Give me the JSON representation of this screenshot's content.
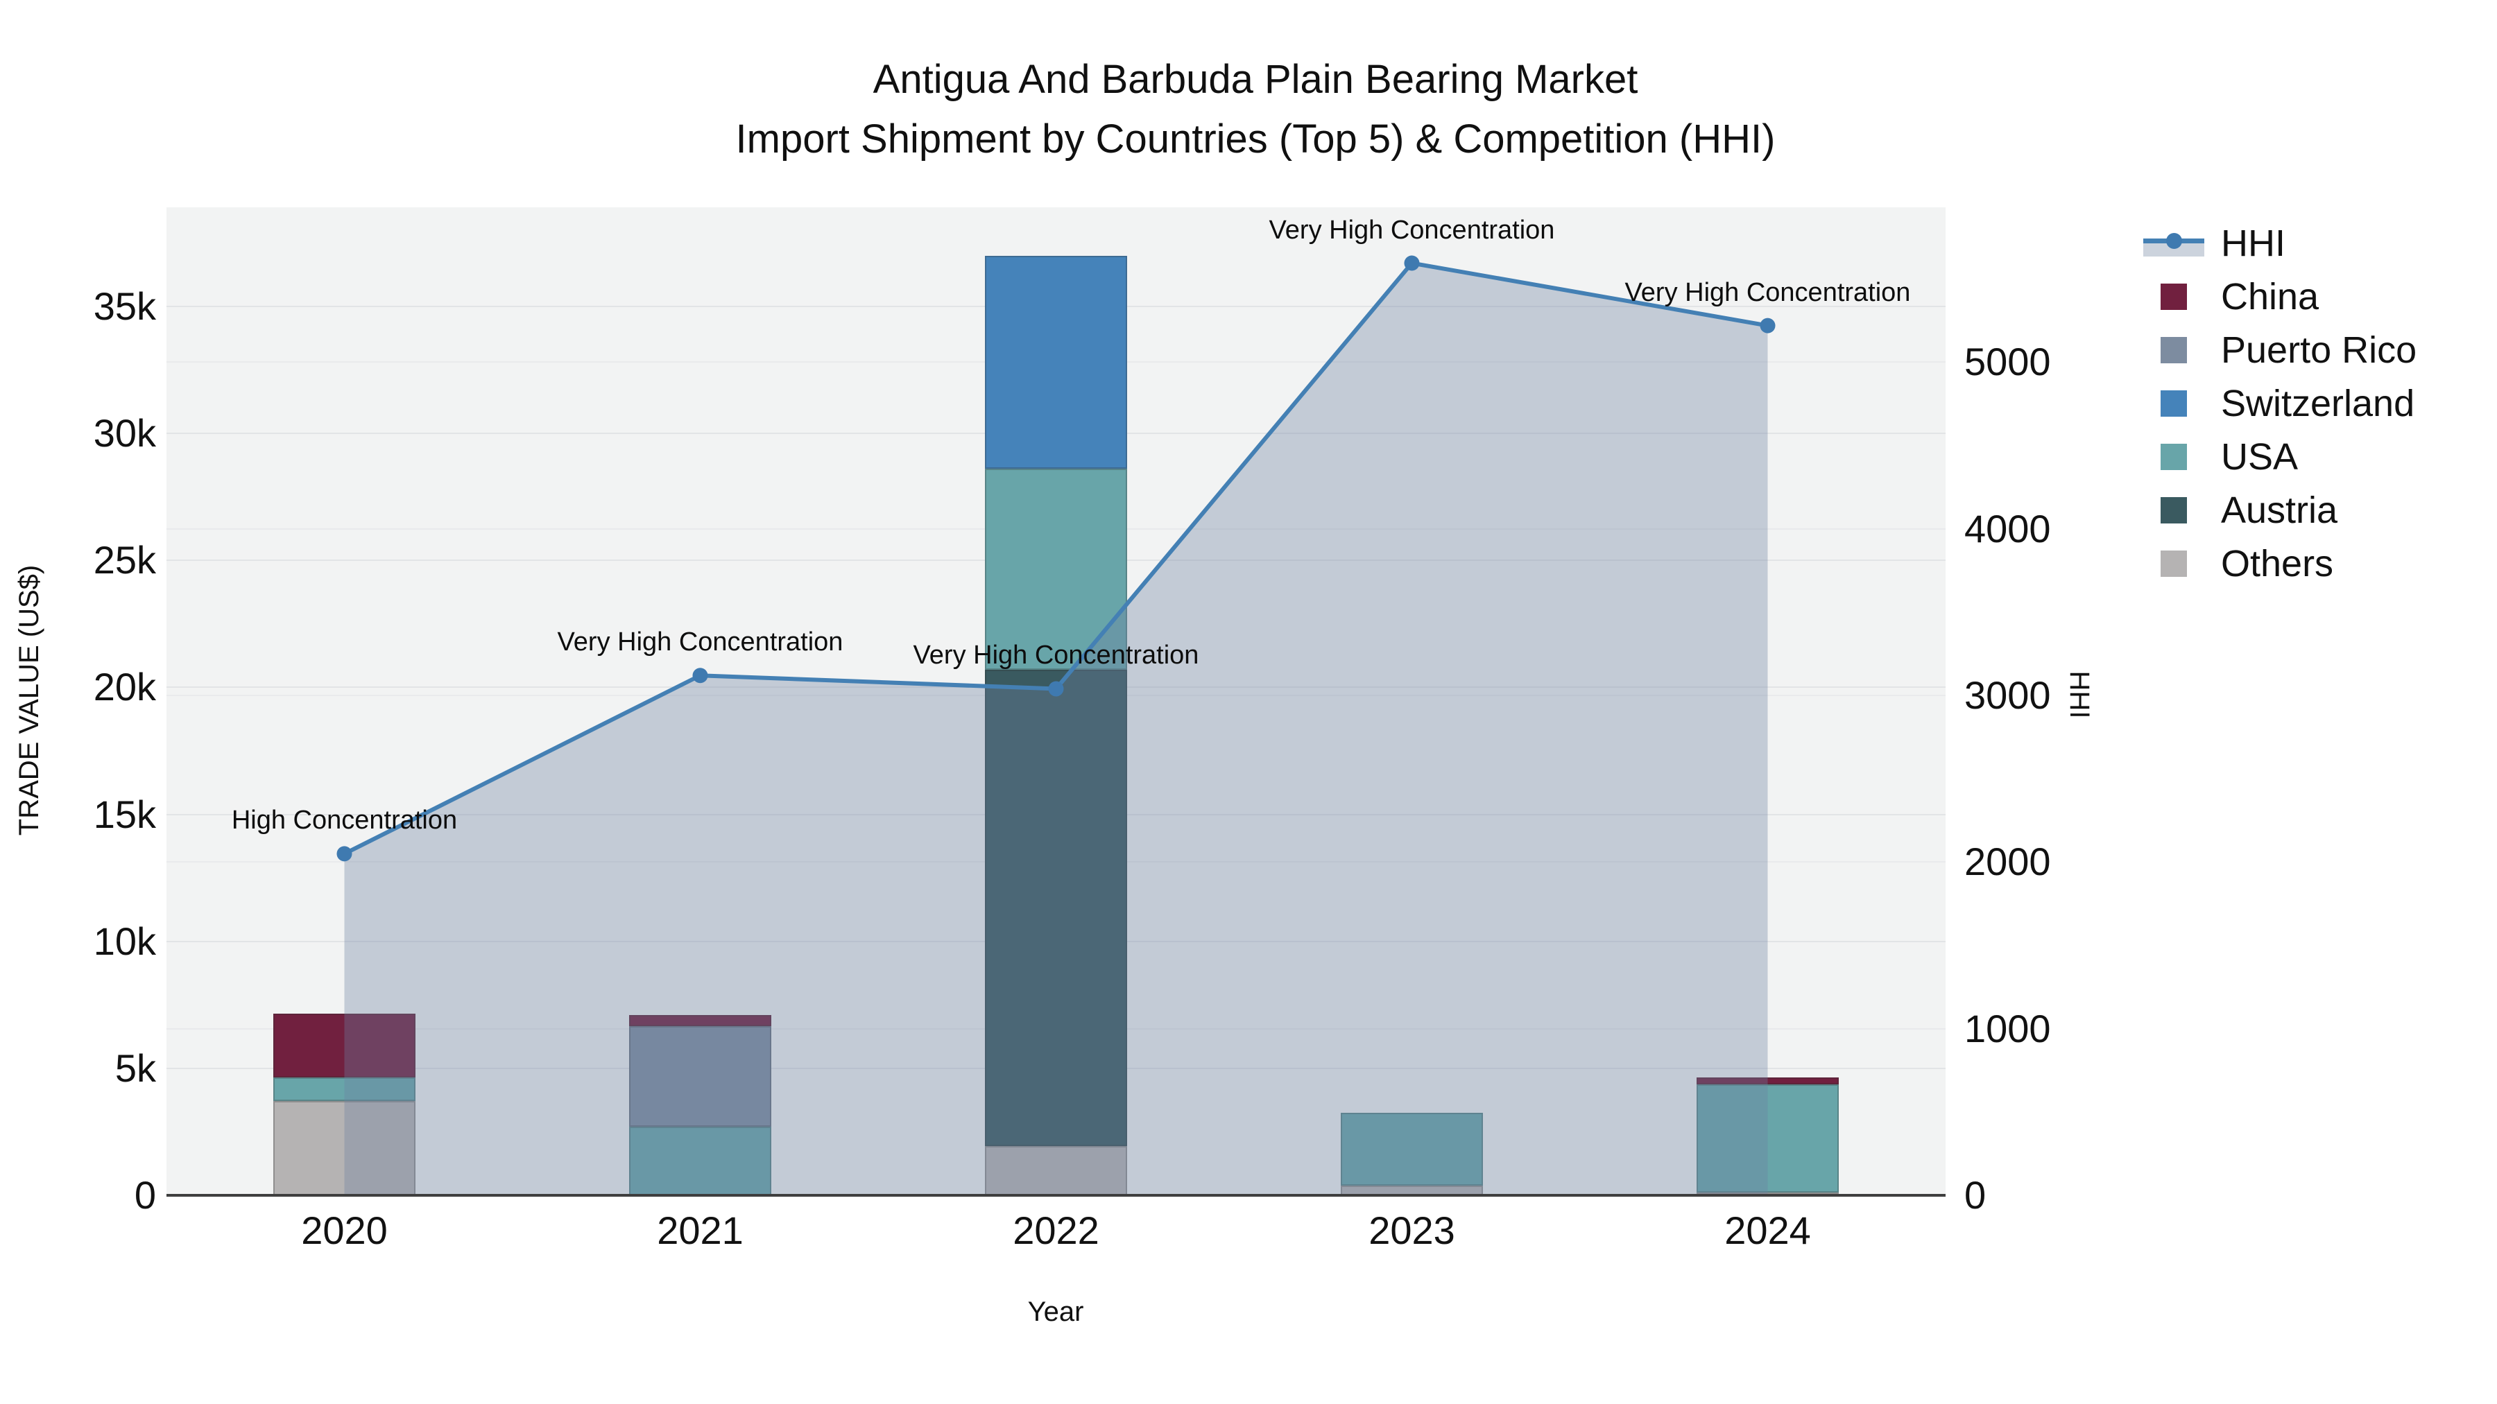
{
  "title": {
    "line1": "Antigua And Barbuda Plain Bearing Market",
    "line2": "Import Shipment by Countries (Top 5) & Competition (HHI)"
  },
  "axes": {
    "left": {
      "title": "TRADE VALUE (US$)",
      "ticks": [
        {
          "value": 0,
          "label": "0"
        },
        {
          "value": 5000,
          "label": "5k"
        },
        {
          "value": 10000,
          "label": "10k"
        },
        {
          "value": 15000,
          "label": "15k"
        },
        {
          "value": 20000,
          "label": "20k"
        },
        {
          "value": 25000,
          "label": "25k"
        },
        {
          "value": 30000,
          "label": "30k"
        },
        {
          "value": 35000,
          "label": "35k"
        }
      ]
    },
    "right": {
      "title": "HHI",
      "ticks": [
        {
          "value": 0,
          "label": "0"
        },
        {
          "value": 1000,
          "label": "1000"
        },
        {
          "value": 2000,
          "label": "2000"
        },
        {
          "value": 3000,
          "label": "3000"
        },
        {
          "value": 4000,
          "label": "4000"
        },
        {
          "value": 5000,
          "label": "5000"
        }
      ]
    },
    "x": {
      "title": "Year"
    }
  },
  "legend": {
    "items": [
      {
        "label": "HHI",
        "type": "line",
        "color": "#4480b4"
      },
      {
        "label": "China",
        "type": "square",
        "color": "#71203f"
      },
      {
        "label": "Puerto Rico",
        "type": "square",
        "color": "#7d8ca0"
      },
      {
        "label": "Switzerland",
        "type": "square",
        "color": "#4583ba"
      },
      {
        "label": "USA",
        "type": "square",
        "color": "#68a5a9"
      },
      {
        "label": "Austria",
        "type": "square",
        "color": "#3a5a60"
      },
      {
        "label": "Others",
        "type": "square",
        "color": "#b5b3b3"
      }
    ]
  },
  "colors": {
    "hhi_line": "#4480b4",
    "hhi_marker": "#3f7ab0",
    "hhi_area_fill": "rgba(110,130,160,0.35)",
    "hhi_legend_band": "#ccd3dd",
    "plot_background": "#f2f3f3",
    "axis_line": "#3f3f3f"
  },
  "chart_data": {
    "type": "bar+line",
    "title": "Antigua And Barbuda Plain Bearing Market Import Shipment by Countries (Top 5) & Competition (HHI)",
    "xlabel": "Year",
    "ylabel": "TRADE VALUE (US$)",
    "ylabel_right": "HHI",
    "categories": [
      "2020",
      "2021",
      "2022",
      "2023",
      "2024"
    ],
    "bar_series": [
      {
        "name": "China",
        "color": "#71203f",
        "values": [
          2500,
          450,
          0,
          0,
          270
        ]
      },
      {
        "name": "Puerto Rico",
        "color": "#7d8ca0",
        "values": [
          0,
          3950,
          0,
          0,
          0
        ]
      },
      {
        "name": "Switzerland",
        "color": "#4583ba",
        "values": [
          0,
          0,
          8400,
          0,
          0
        ]
      },
      {
        "name": "USA",
        "color": "#68a5a9",
        "values": [
          950,
          2700,
          7900,
          2870,
          4250
        ]
      },
      {
        "name": "Austria",
        "color": "#3a5a60",
        "values": [
          0,
          0,
          18750,
          0,
          0
        ]
      },
      {
        "name": "Others",
        "color": "#b5b3b3",
        "values": [
          3700,
          0,
          1950,
          380,
          120
        ]
      }
    ],
    "stack_order_bottom_to_top": [
      "Others",
      "Austria",
      "USA",
      "Switzerland",
      "Puerto Rico",
      "China"
    ],
    "line_series": {
      "name": "HHI",
      "axis": "right",
      "color": "#4480b4",
      "values": [
        2050,
        3120,
        3040,
        5595,
        5220
      ]
    },
    "annotations": [
      "High Concentration",
      "Very High Concentration",
      "Very High Concentration",
      "Very High Concentration",
      "Very High Concentration"
    ],
    "ylim_left": [
      0,
      38900
    ],
    "ylim_right": [
      0,
      5930
    ],
    "grid": true,
    "legend_position": "right"
  }
}
